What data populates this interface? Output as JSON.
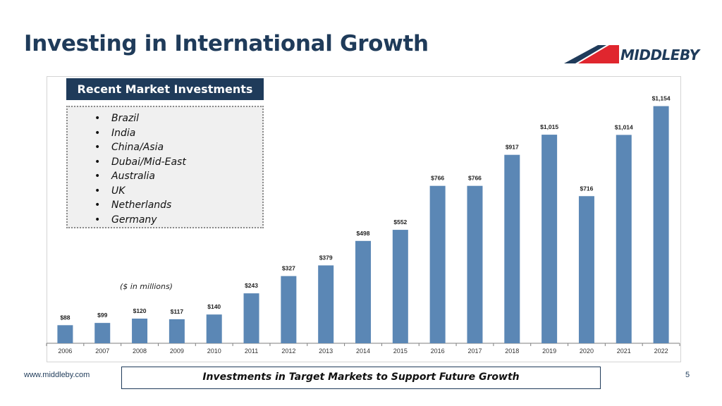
{
  "slide": {
    "title": "Investing in International Growth",
    "logo_text": "MIDDLEBY",
    "panel_title": "Recent Market Investments",
    "markets": [
      "Brazil",
      "India",
      "China/Asia",
      "Dubai/Mid-East",
      "Australia",
      "UK",
      "Netherlands",
      "Germany"
    ],
    "units_note": "($ in millions)",
    "footer_url": "www.middleby.com",
    "footer_message": "Investments in Target Markets to Support Future Growth",
    "page_number": "5"
  },
  "colors": {
    "bar": "#5b87b5",
    "title": "#1f3b5a",
    "logo_red": "#e0262e",
    "logo_navy": "#1f3b5a"
  },
  "chart_data": {
    "type": "bar",
    "categories": [
      "2006",
      "2007",
      "2008",
      "2009",
      "2010",
      "2011",
      "2012",
      "2013",
      "2014",
      "2015",
      "2016",
      "2017",
      "2018",
      "2019",
      "2020",
      "2021",
      "2022"
    ],
    "values": [
      88,
      99,
      120,
      117,
      140,
      243,
      327,
      379,
      498,
      552,
      766,
      766,
      917,
      1015,
      716,
      1014,
      1154
    ],
    "data_labels": [
      "$88",
      "$99",
      "$120",
      "$117",
      "$140",
      "$243",
      "$327",
      "$379",
      "$498",
      "$552",
      "$766",
      "$766",
      "$917",
      "$1,015",
      "$716",
      "$1,014",
      "$1,154"
    ],
    "title": "",
    "xlabel": "",
    "ylabel": "",
    "ylim": [
      0,
      1300
    ],
    "grid": false,
    "legend": "none"
  }
}
